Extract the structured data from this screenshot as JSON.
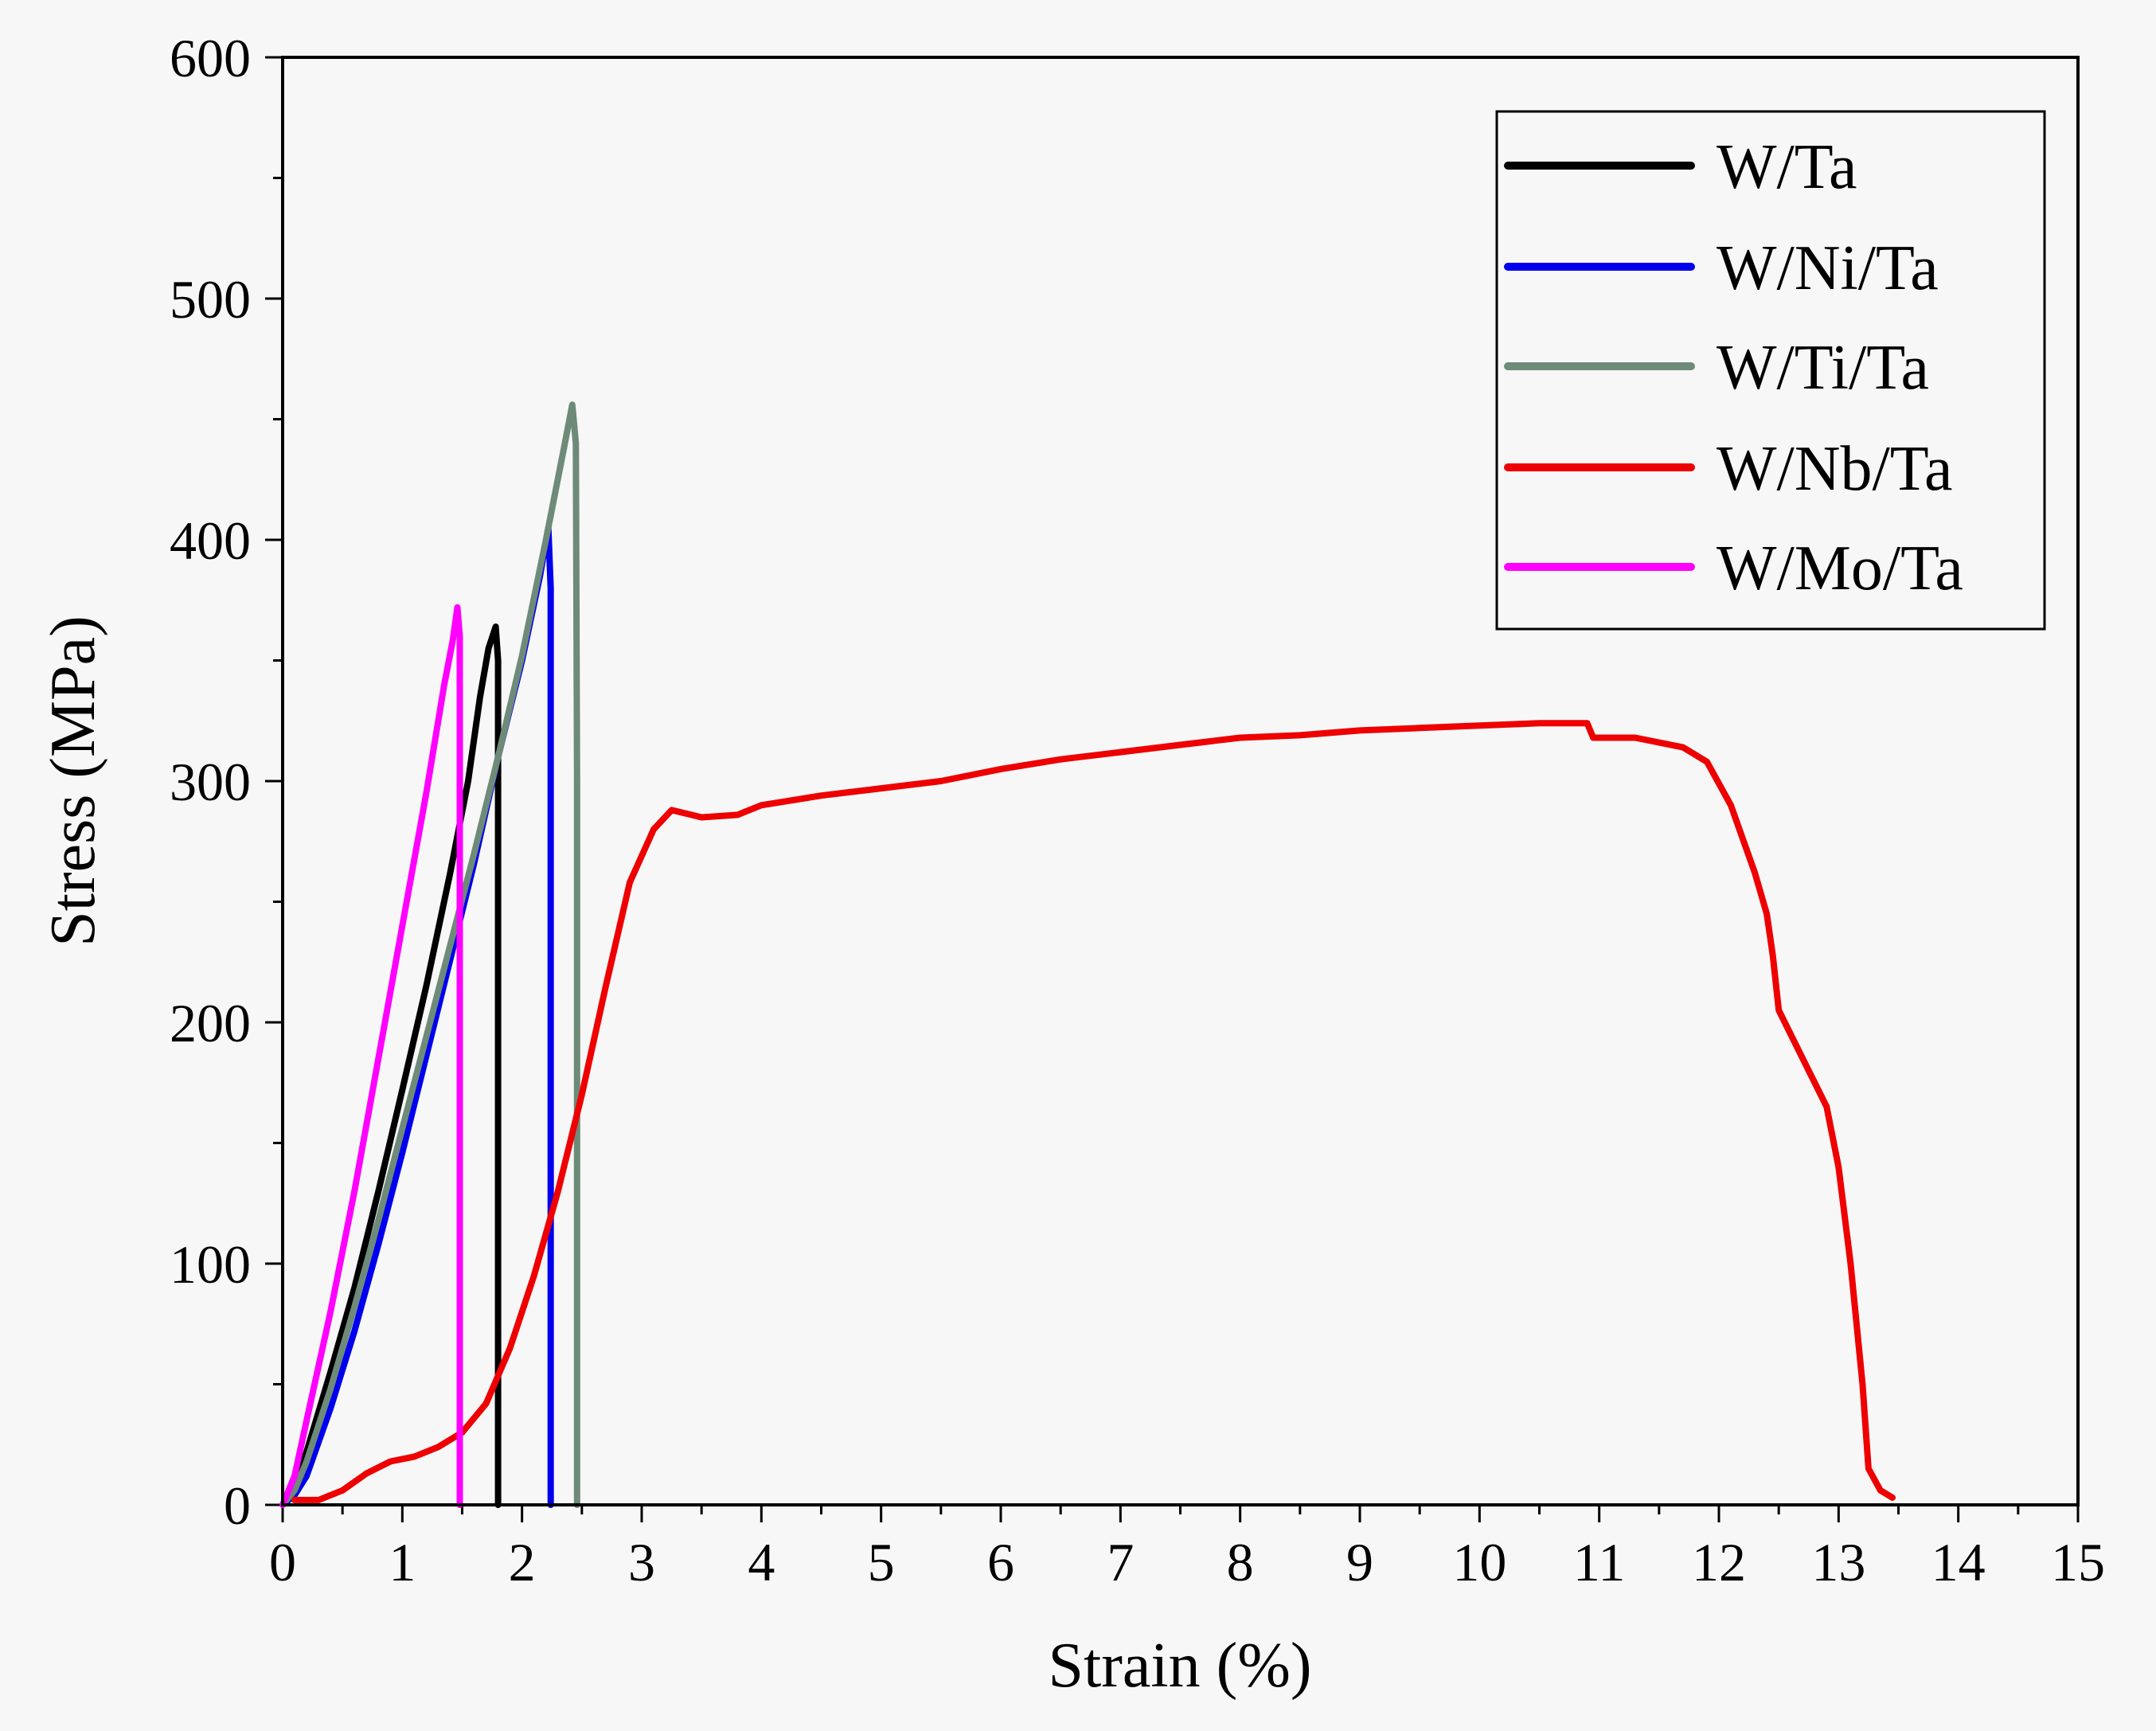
{
  "chart_data": {
    "type": "line",
    "title": "",
    "xlabel": "Strain (%)",
    "ylabel": "Stress (MPa)",
    "xlim": [
      0,
      15
    ],
    "ylim": [
      0,
      600
    ],
    "xticks": [
      "0",
      "1",
      "2",
      "3",
      "4",
      "5",
      "6",
      "7",
      "8",
      "9",
      "10",
      "11",
      "12",
      "13",
      "14",
      "15"
    ],
    "yticks": [
      "0",
      "100",
      "200",
      "300",
      "400",
      "500",
      "600"
    ],
    "grid": false,
    "legend_position": "top-right",
    "series": [
      {
        "name": "W/Ta",
        "color": "#000000",
        "points": [
          [
            0,
            0
          ],
          [
            0.1,
            8
          ],
          [
            0.2,
            22
          ],
          [
            0.4,
            55
          ],
          [
            0.6,
            90
          ],
          [
            0.8,
            130
          ],
          [
            1.0,
            172
          ],
          [
            1.2,
            215
          ],
          [
            1.4,
            262
          ],
          [
            1.55,
            300
          ],
          [
            1.65,
            335
          ],
          [
            1.72,
            355
          ],
          [
            1.78,
            364
          ],
          [
            1.8,
            350
          ],
          [
            1.8,
            0
          ]
        ]
      },
      {
        "name": "W/Ni/Ta",
        "color": "#0000ee",
        "points": [
          [
            0,
            0
          ],
          [
            0.1,
            4
          ],
          [
            0.2,
            12
          ],
          [
            0.4,
            40
          ],
          [
            0.6,
            72
          ],
          [
            0.8,
            108
          ],
          [
            1.0,
            146
          ],
          [
            1.2,
            186
          ],
          [
            1.4,
            226
          ],
          [
            1.6,
            266
          ],
          [
            1.8,
            310
          ],
          [
            2.0,
            350
          ],
          [
            2.15,
            385
          ],
          [
            2.22,
            405
          ],
          [
            2.24,
            380
          ],
          [
            2.24,
            0
          ]
        ]
      },
      {
        "name": "W/Ti/Ta",
        "color": "#6e8a78",
        "points": [
          [
            0,
            0
          ],
          [
            0.1,
            6
          ],
          [
            0.2,
            18
          ],
          [
            0.4,
            48
          ],
          [
            0.6,
            82
          ],
          [
            0.8,
            118
          ],
          [
            1.0,
            156
          ],
          [
            1.2,
            194
          ],
          [
            1.4,
            232
          ],
          [
            1.6,
            270
          ],
          [
            1.8,
            310
          ],
          [
            2.0,
            352
          ],
          [
            2.2,
            400
          ],
          [
            2.35,
            438
          ],
          [
            2.42,
            456
          ],
          [
            2.45,
            440
          ],
          [
            2.46,
            300
          ],
          [
            2.46,
            0
          ]
        ]
      },
      {
        "name": "W/Nb/Ta",
        "color": "#ee0000",
        "points": [
          [
            0.1,
            2
          ],
          [
            0.3,
            2
          ],
          [
            0.5,
            6
          ],
          [
            0.7,
            13
          ],
          [
            0.9,
            18
          ],
          [
            1.1,
            20
          ],
          [
            1.3,
            24
          ],
          [
            1.5,
            30
          ],
          [
            1.7,
            42
          ],
          [
            1.9,
            65
          ],
          [
            2.1,
            95
          ],
          [
            2.3,
            130
          ],
          [
            2.5,
            170
          ],
          [
            2.7,
            215
          ],
          [
            2.9,
            258
          ],
          [
            3.1,
            280
          ],
          [
            3.25,
            288
          ],
          [
            3.5,
            285
          ],
          [
            3.8,
            286
          ],
          [
            4.0,
            290
          ],
          [
            4.5,
            294
          ],
          [
            5.0,
            297
          ],
          [
            5.5,
            300
          ],
          [
            6.0,
            305
          ],
          [
            6.5,
            309
          ],
          [
            7.0,
            312
          ],
          [
            7.5,
            315
          ],
          [
            8.0,
            318
          ],
          [
            8.5,
            319
          ],
          [
            9.0,
            321
          ],
          [
            9.5,
            322
          ],
          [
            10.0,
            323
          ],
          [
            10.5,
            324
          ],
          [
            10.9,
            324
          ],
          [
            10.95,
            318
          ],
          [
            11.3,
            318
          ],
          [
            11.7,
            314
          ],
          [
            11.9,
            308
          ],
          [
            12.1,
            290
          ],
          [
            12.3,
            262
          ],
          [
            12.4,
            245
          ],
          [
            12.45,
            228
          ],
          [
            12.5,
            205
          ],
          [
            12.7,
            185
          ],
          [
            12.9,
            165
          ],
          [
            13.0,
            140
          ],
          [
            13.1,
            100
          ],
          [
            13.2,
            50
          ],
          [
            13.25,
            15
          ],
          [
            13.35,
            6
          ],
          [
            13.45,
            3
          ]
        ]
      },
      {
        "name": "W/Mo/Ta",
        "color": "#ff00ff",
        "points": [
          [
            0,
            0
          ],
          [
            0.1,
            12
          ],
          [
            0.2,
            35
          ],
          [
            0.4,
            80
          ],
          [
            0.6,
            130
          ],
          [
            0.8,
            185
          ],
          [
            1.0,
            240
          ],
          [
            1.2,
            295
          ],
          [
            1.35,
            340
          ],
          [
            1.42,
            358
          ],
          [
            1.46,
            372
          ],
          [
            1.48,
            360
          ],
          [
            1.48,
            0
          ]
        ]
      }
    ]
  }
}
